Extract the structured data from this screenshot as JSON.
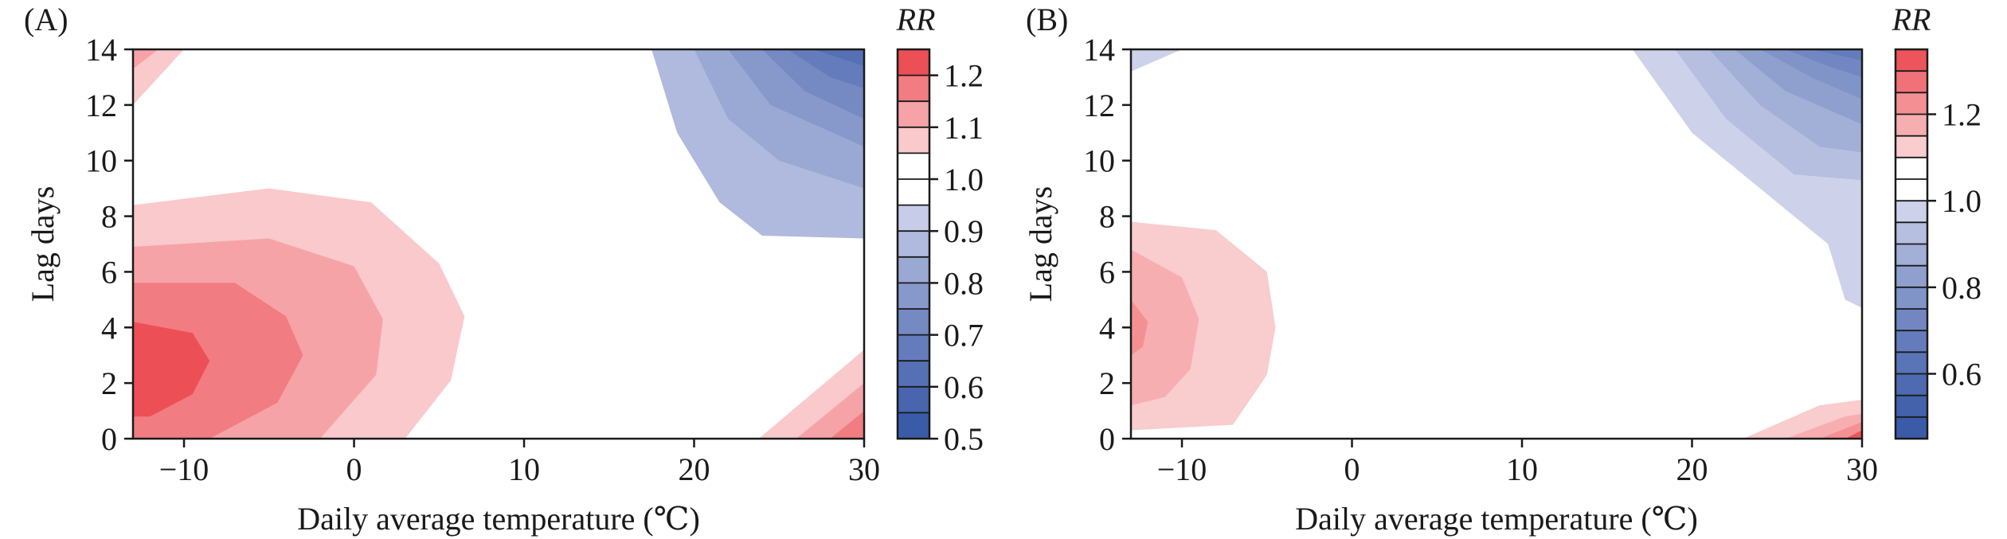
{
  "chart_data": [
    {
      "type": "contour",
      "panel_label": "(A)",
      "xlabel": "Daily average temperature (℃)",
      "ylabel": "Lag days",
      "xlim": [
        -13,
        30
      ],
      "ylim": [
        0,
        14
      ],
      "x_ticks": [
        -10,
        0,
        10,
        20,
        30
      ],
      "y_ticks": [
        0,
        2,
        4,
        6,
        8,
        10,
        12,
        14
      ],
      "colorbar": {
        "title": "RR",
        "levels": [
          0.5,
          0.55,
          0.6,
          0.65,
          0.7,
          0.75,
          0.8,
          0.85,
          0.9,
          0.95,
          1.0,
          1.05,
          1.1,
          1.15,
          1.2,
          1.25
        ],
        "colors": [
          "#3a5ba8",
          "#4865ae",
          "#5670b5",
          "#657cbc",
          "#7589c3",
          "#8798cb",
          "#9aa8d4",
          "#afbade",
          "#c7cde8",
          "#ffffff",
          "#ffffff",
          "#f9c9cb",
          "#f6a3a7",
          "#f17c81",
          "#ec4f55"
        ],
        "tick_values": [
          0.5,
          0.6,
          0.7,
          0.8,
          0.9,
          1.0,
          1.1,
          1.2
        ]
      },
      "regions": [
        {
          "rr_range": [
            1.05,
            1.1
          ],
          "outline": [
            [
              -13,
              8.4
            ],
            [
              -5,
              9
            ],
            [
              1,
              8.5
            ],
            [
              5,
              6.3
            ],
            [
              6.5,
              4.4
            ],
            [
              5.7,
              2.1
            ],
            [
              3,
              0
            ],
            [
              -13,
              0
            ]
          ]
        },
        {
          "rr_range": [
            1.1,
            1.15
          ],
          "outline": [
            [
              -13,
              6.9
            ],
            [
              -5,
              7.2
            ],
            [
              0,
              6.2
            ],
            [
              1.7,
              4.3
            ],
            [
              1.3,
              2.3
            ],
            [
              -2,
              0
            ],
            [
              -13,
              0
            ]
          ]
        },
        {
          "rr_range": [
            1.15,
            1.2
          ],
          "outline": [
            [
              -13,
              5.6
            ],
            [
              -7,
              5.6
            ],
            [
              -4,
              4.4
            ],
            [
              -3,
              3
            ],
            [
              -4.5,
              1.3
            ],
            [
              -8.5,
              0
            ],
            [
              -13,
              0
            ]
          ]
        },
        {
          "rr_range": [
            1.2,
            1.25
          ],
          "outline": [
            [
              -13,
              4.2
            ],
            [
              -9.5,
              3.8
            ],
            [
              -8.5,
              2.8
            ],
            [
              -9.5,
              1.6
            ],
            [
              -12,
              0.8
            ],
            [
              -13,
              0.8
            ]
          ]
        },
        {
          "rr_range": [
            1.05,
            1.1
          ],
          "outline": [
            [
              -13,
              12
            ],
            [
              -10,
              14
            ],
            [
              -13,
              14
            ]
          ]
        },
        {
          "rr_range": [
            1.1,
            1.15
          ],
          "outline": [
            [
              -13,
              13.3
            ],
            [
              -11.5,
              14
            ],
            [
              -13,
              14
            ]
          ]
        },
        {
          "rr_range": [
            1.05,
            1.1
          ],
          "outline": [
            [
              23.8,
              0
            ],
            [
              30,
              3.2
            ],
            [
              30,
              0
            ]
          ]
        },
        {
          "rr_range": [
            1.1,
            1.15
          ],
          "outline": [
            [
              26,
              0
            ],
            [
              30,
              2
            ],
            [
              30,
              0
            ]
          ]
        },
        {
          "rr_range": [
            1.15,
            1.2
          ],
          "outline": [
            [
              28,
              0
            ],
            [
              30,
              1
            ],
            [
              30,
              0
            ]
          ]
        },
        {
          "rr_range": [
            0.85,
            0.9
          ],
          "outline": [
            [
              17.5,
              14
            ],
            [
              19,
              11
            ],
            [
              21.5,
              8.5
            ],
            [
              24,
              7.3
            ],
            [
              30,
              7.2
            ],
            [
              30,
              14
            ]
          ]
        },
        {
          "rr_range": [
            0.8,
            0.85
          ],
          "outline": [
            [
              20,
              14
            ],
            [
              22,
              11.5
            ],
            [
              25,
              10
            ],
            [
              30,
              9
            ],
            [
              30,
              14
            ]
          ]
        },
        {
          "rr_range": [
            0.75,
            0.8
          ],
          "outline": [
            [
              22,
              14
            ],
            [
              24.5,
              12
            ],
            [
              30,
              10.5
            ],
            [
              30,
              14
            ]
          ]
        },
        {
          "rr_range": [
            0.7,
            0.75
          ],
          "outline": [
            [
              24,
              14
            ],
            [
              26.5,
              12.5
            ],
            [
              30,
              11.5
            ],
            [
              30,
              14
            ]
          ]
        },
        {
          "rr_range": [
            0.65,
            0.7
          ],
          "outline": [
            [
              25.5,
              14
            ],
            [
              28,
              13
            ],
            [
              30,
              12.6
            ],
            [
              30,
              14
            ]
          ]
        },
        {
          "rr_range": [
            0.6,
            0.65
          ],
          "outline": [
            [
              27,
              14
            ],
            [
              30,
              13.4
            ],
            [
              30,
              14
            ]
          ]
        }
      ]
    },
    {
      "type": "contour",
      "panel_label": "(B)",
      "xlabel": "Daily average temperature (℃)",
      "ylabel": "Lag days",
      "xlim": [
        -13,
        30
      ],
      "ylim": [
        0,
        14
      ],
      "x_ticks": [
        -10,
        0,
        10,
        20,
        30
      ],
      "y_ticks": [
        0,
        2,
        4,
        6,
        8,
        10,
        12,
        14
      ],
      "colorbar": {
        "title": "RR",
        "levels": [
          0.45,
          0.5,
          0.55,
          0.6,
          0.65,
          0.7,
          0.75,
          0.8,
          0.85,
          0.9,
          0.95,
          1.0,
          1.05,
          1.1,
          1.15,
          1.2,
          1.25,
          1.3,
          1.35
        ],
        "colors": [
          "#3a5ba8",
          "#4462ac",
          "#4e6ab1",
          "#5974b7",
          "#657cbc",
          "#7287c2",
          "#8094c8",
          "#90a0ce",
          "#a2afd6",
          "#b6bfe0",
          "#cdd2ea",
          "#ffffff",
          "#ffffff",
          "#f9cccd",
          "#f7aeb1",
          "#f49094",
          "#f07278",
          "#ed545b"
        ],
        "tick_values": [
          0.6,
          0.8,
          1.0,
          1.2
        ]
      },
      "regions": [
        {
          "rr_range": [
            1.05,
            1.1
          ],
          "outline": [
            [
              -13,
              9.8
            ],
            [
              -5,
              10.2
            ],
            [
              0,
              9.8
            ],
            [
              2,
              8.5
            ],
            [
              1.5,
              6.5
            ],
            [
              0.5,
              4.5
            ],
            [
              0,
              2.2
            ],
            [
              1.3,
              0
            ],
            [
              -13,
              0
            ]
          ]
        },
        {
          "rr_range": [
            1.1,
            1.15
          ],
          "outline": [
            [
              -13,
              7.8
            ],
            [
              -8,
              7.5
            ],
            [
              -5,
              6
            ],
            [
              -4.5,
              4
            ],
            [
              -5,
              2.3
            ],
            [
              -7,
              0.5
            ],
            [
              -13,
              0.3
            ]
          ]
        },
        {
          "rr_range": [
            1.15,
            1.2
          ],
          "outline": [
            [
              -13,
              6.8
            ],
            [
              -10,
              5.8
            ],
            [
              -9,
              4.3
            ],
            [
              -9.5,
              2.5
            ],
            [
              -11,
              1.5
            ],
            [
              -13,
              1.2
            ]
          ]
        },
        {
          "rr_range": [
            1.2,
            1.25
          ],
          "outline": [
            [
              -13,
              5
            ],
            [
              -12,
              4.2
            ],
            [
              -12.3,
              3.3
            ],
            [
              -13,
              3
            ]
          ]
        },
        {
          "rr_range": [
            0.95,
            1.0
          ],
          "outline": [
            [
              -13,
              13.2
            ],
            [
              -10,
              14
            ],
            [
              -13,
              14
            ]
          ]
        },
        {
          "rr_range": [
            1.05,
            1.1
          ],
          "outline": [
            [
              21,
              0
            ],
            [
              27,
              1.8
            ],
            [
              30,
              2
            ],
            [
              30,
              0
            ]
          ]
        },
        {
          "rr_range": [
            1.1,
            1.15
          ],
          "outline": [
            [
              23,
              0
            ],
            [
              27.5,
              1.2
            ],
            [
              30,
              1.4
            ],
            [
              30,
              0
            ]
          ]
        },
        {
          "rr_range": [
            1.15,
            1.2
          ],
          "outline": [
            [
              25.5,
              0
            ],
            [
              29,
              0.8
            ],
            [
              30,
              0.9
            ],
            [
              30,
              0
            ]
          ]
        },
        {
          "rr_range": [
            1.2,
            1.25
          ],
          "outline": [
            [
              27.5,
              0
            ],
            [
              30,
              0.6
            ],
            [
              30,
              0
            ]
          ]
        },
        {
          "rr_range": [
            1.25,
            1.35
          ],
          "outline": [
            [
              29,
              0
            ],
            [
              30,
              0.3
            ],
            [
              30,
              0
            ]
          ]
        },
        {
          "rr_range": [
            0.95,
            1.0
          ],
          "outline": [
            [
              16.5,
              14
            ],
            [
              20,
              11
            ],
            [
              25,
              8.5
            ],
            [
              28,
              7
            ],
            [
              29,
              5
            ],
            [
              30,
              4.7
            ],
            [
              30,
              14
            ]
          ]
        },
        {
          "rr_range": [
            0.9,
            0.95
          ],
          "outline": [
            [
              19,
              14
            ],
            [
              22,
              11.5
            ],
            [
              26,
              9.5
            ],
            [
              30,
              9.3
            ],
            [
              30,
              14
            ]
          ]
        },
        {
          "rr_range": [
            0.85,
            0.9
          ],
          "outline": [
            [
              21,
              14
            ],
            [
              24,
              12
            ],
            [
              27.5,
              10.5
            ],
            [
              30,
              10.3
            ],
            [
              30,
              14
            ]
          ]
        },
        {
          "rr_range": [
            0.8,
            0.85
          ],
          "outline": [
            [
              22.5,
              14
            ],
            [
              25.5,
              12.5
            ],
            [
              30,
              11.3
            ],
            [
              30,
              14
            ]
          ]
        },
        {
          "rr_range": [
            0.75,
            0.8
          ],
          "outline": [
            [
              24,
              14
            ],
            [
              27,
              13
            ],
            [
              30,
              12.2
            ],
            [
              30,
              14
            ]
          ]
        },
        {
          "rr_range": [
            0.7,
            0.75
          ],
          "outline": [
            [
              25.5,
              14
            ],
            [
              28,
              13.4
            ],
            [
              30,
              13
            ],
            [
              30,
              14
            ]
          ]
        },
        {
          "rr_range": [
            0.65,
            0.7
          ],
          "outline": [
            [
              27,
              14
            ],
            [
              30,
              13.6
            ],
            [
              30,
              14
            ]
          ]
        }
      ]
    }
  ]
}
